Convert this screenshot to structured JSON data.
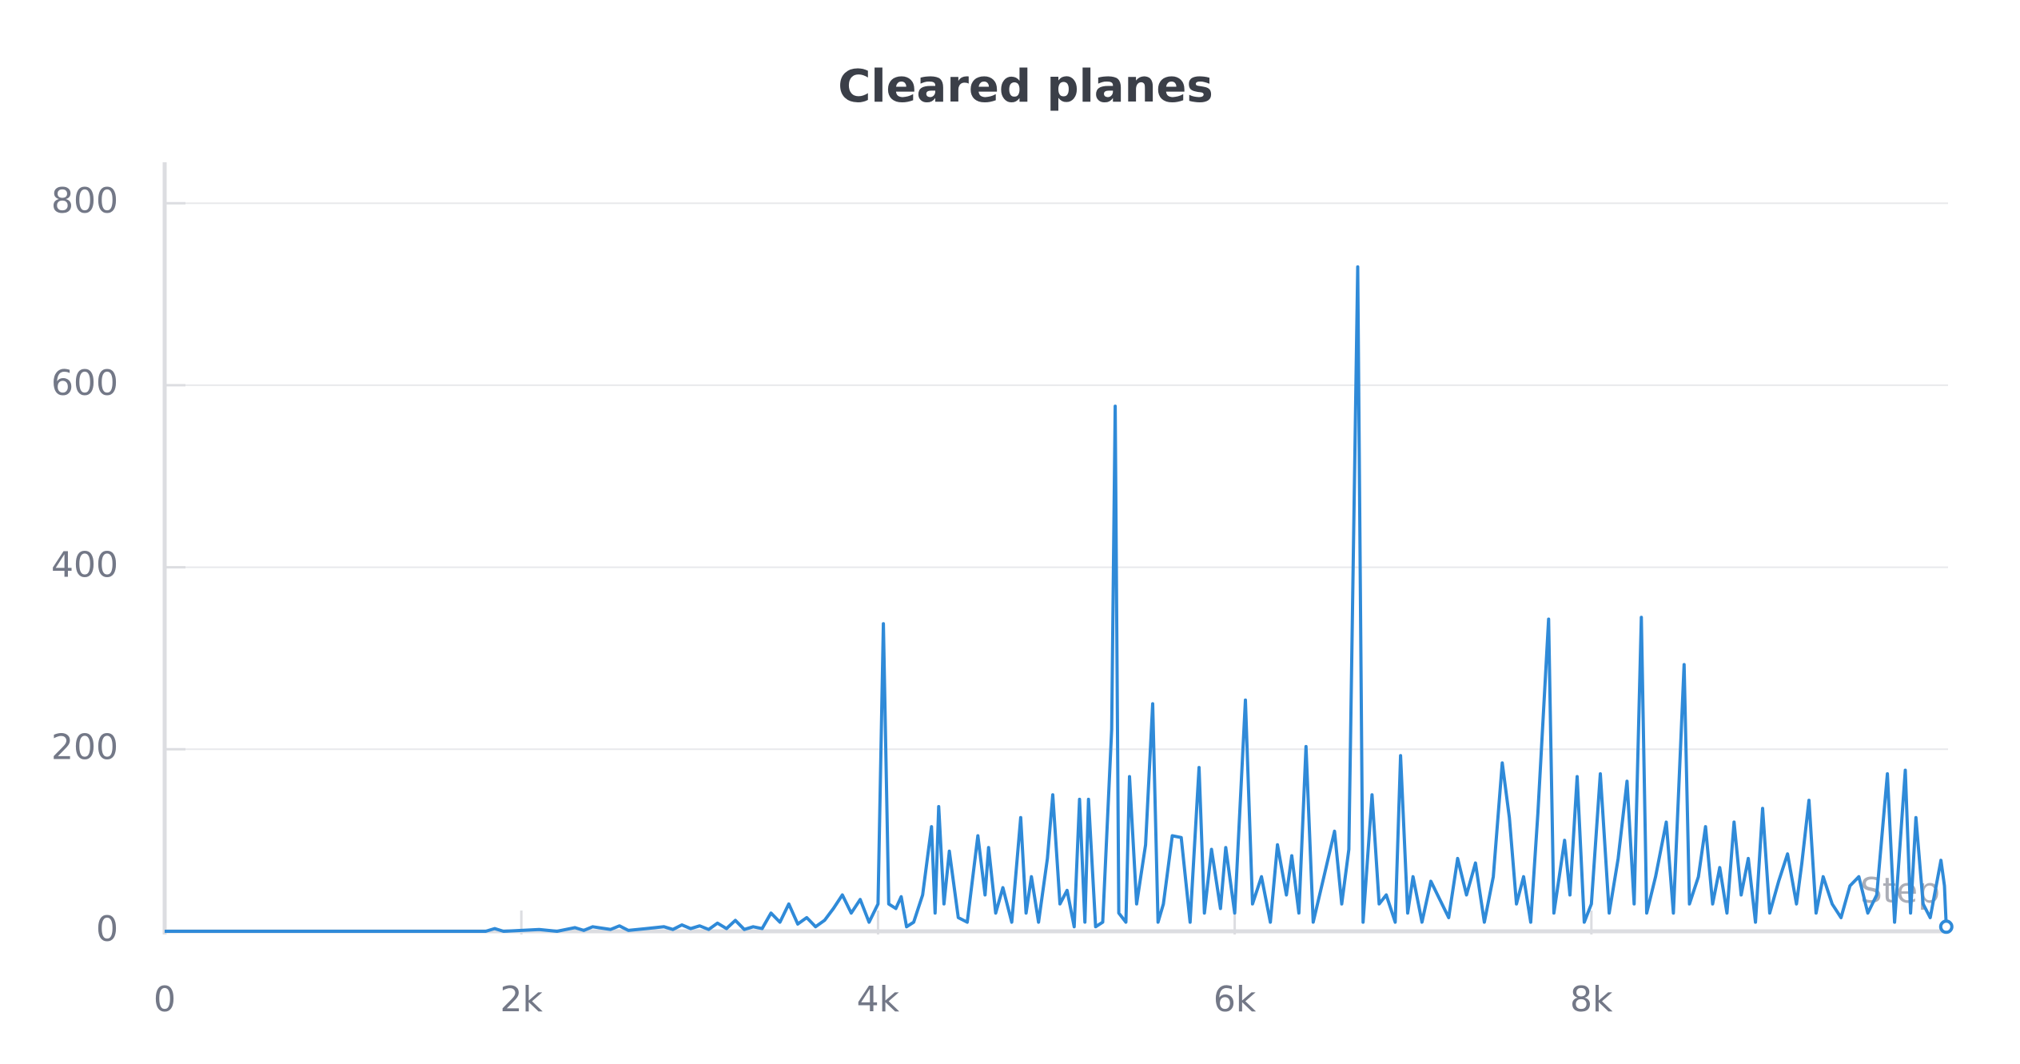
{
  "chart_data": {
    "type": "line",
    "title": "Cleared planes",
    "x_label": "Step",
    "color": "#2f8ad8",
    "xlim": [
      0,
      10000
    ],
    "ylim": [
      0,
      845
    ],
    "xticks": [
      0,
      {
        "value": 2000,
        "label": "2k"
      },
      {
        "value": 4000,
        "label": "4k"
      },
      {
        "value": 6000,
        "label": "6k"
      },
      {
        "value": 8000,
        "label": "8k"
      }
    ],
    "yticks": [
      0,
      200,
      400,
      600,
      800
    ],
    "grid": true,
    "x": [
      0,
      1800,
      1850,
      1900,
      2100,
      2200,
      2300,
      2350,
      2400,
      2500,
      2550,
      2600,
      2700,
      2800,
      2850,
      2900,
      2950,
      3000,
      3050,
      3100,
      3150,
      3200,
      3250,
      3300,
      3350,
      3400,
      3450,
      3500,
      3550,
      3600,
      3650,
      3700,
      3750,
      3800,
      3850,
      3900,
      3950,
      4000,
      4030,
      4060,
      4100,
      4130,
      4160,
      4200,
      4250,
      4300,
      4320,
      4340,
      4370,
      4400,
      4450,
      4500,
      4560,
      4600,
      4620,
      4660,
      4700,
      4750,
      4800,
      4830,
      4860,
      4900,
      4950,
      4980,
      5020,
      5060,
      5100,
      5130,
      5160,
      5180,
      5220,
      5260,
      5310,
      5330,
      5350,
      5390,
      5410,
      5450,
      5500,
      5540,
      5570,
      5600,
      5650,
      5700,
      5750,
      5800,
      5830,
      5870,
      5920,
      5950,
      6000,
      6060,
      6100,
      6150,
      6200,
      6240,
      6290,
      6320,
      6360,
      6400,
      6440,
      6500,
      6560,
      6600,
      6640,
      6690,
      6720,
      6770,
      6810,
      6850,
      6900,
      6930,
      6970,
      7000,
      7050,
      7100,
      7150,
      7200,
      7250,
      7300,
      7350,
      7400,
      7450,
      7500,
      7540,
      7580,
      7620,
      7660,
      7700,
      7760,
      7790,
      7850,
      7880,
      7920,
      7960,
      8000,
      8050,
      8100,
      8150,
      8200,
      8240,
      8280,
      8310,
      8360,
      8420,
      8460,
      8520,
      8550,
      8600,
      8640,
      8680,
      8720,
      8760,
      8800,
      8840,
      8880,
      8920,
      8960,
      9000,
      9050,
      9100,
      9150,
      9180,
      9220,
      9260,
      9300,
      9350,
      9400,
      9450,
      9500,
      9550,
      9600,
      9660,
      9700,
      9760,
      9790,
      9820,
      9860,
      9900,
      9960,
      9980,
      9990
    ],
    "values": [
      0,
      0,
      3,
      0,
      2,
      0,
      4,
      1,
      5,
      2,
      6,
      1,
      3,
      5,
      2,
      7,
      3,
      6,
      2,
      9,
      3,
      12,
      2,
      5,
      3,
      20,
      10,
      30,
      8,
      15,
      5,
      12,
      25,
      40,
      20,
      35,
      10,
      30,
      338,
      30,
      25,
      38,
      5,
      10,
      40,
      115,
      20,
      137,
      30,
      88,
      15,
      10,
      105,
      40,
      92,
      20,
      48,
      10,
      125,
      20,
      60,
      10,
      80,
      150,
      30,
      45,
      5,
      145,
      10,
      145,
      5,
      10,
      222,
      577,
      20,
      10,
      170,
      30,
      95,
      250,
      10,
      30,
      105,
      103,
      10,
      180,
      20,
      90,
      25,
      92,
      20,
      254,
      30,
      60,
      10,
      95,
      40,
      83,
      20,
      203,
      10,
      60,
      110,
      30,
      90,
      730,
      10,
      150,
      30,
      40,
      10,
      193,
      20,
      60,
      10,
      55,
      35,
      15,
      80,
      40,
      75,
      10,
      60,
      185,
      125,
      30,
      60,
      10,
      130,
      343,
      20,
      100,
      40,
      170,
      10,
      30,
      173,
      20,
      80,
      165,
      30,
      345,
      20,
      60,
      120,
      20,
      293,
      30,
      60,
      115,
      30,
      70,
      20,
      120,
      40,
      80,
      10,
      135,
      20,
      55,
      85,
      30,
      75,
      144,
      20,
      60,
      30,
      15,
      50,
      60,
      20,
      40,
      173,
      10,
      177,
      20,
      125,
      30,
      15,
      78,
      50,
      5
    ]
  }
}
